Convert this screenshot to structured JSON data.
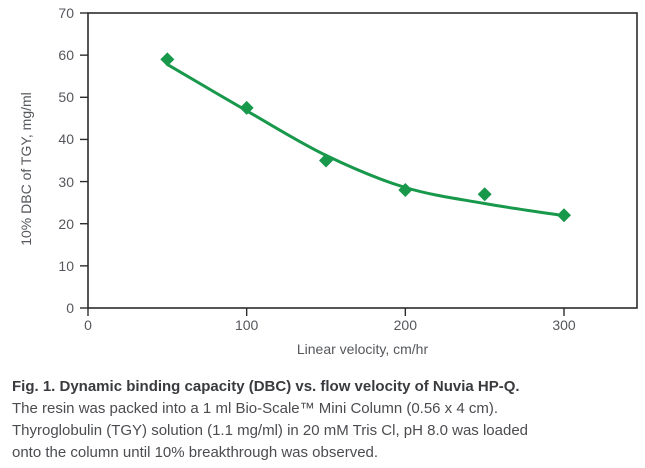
{
  "chart_data": {
    "type": "scatter",
    "title": "",
    "xlabel": "Linear velocity, cm/hr",
    "ylabel": "10% DBC of TGY, mg/ml",
    "xlim": [
      0,
      346
    ],
    "ylim": [
      0,
      70
    ],
    "x_ticks": [
      0,
      100,
      200,
      300
    ],
    "y_ticks": [
      0,
      10,
      20,
      30,
      40,
      50,
      60,
      70
    ],
    "grid": false,
    "legend": "none",
    "marker": "diamond",
    "series": [
      {
        "name": "10% DBC of TGY",
        "points": [
          [
            50,
            59
          ],
          [
            100,
            47.5
          ],
          [
            150,
            35
          ],
          [
            200,
            28
          ],
          [
            250,
            27
          ],
          [
            300,
            22
          ]
        ]
      }
    ],
    "trend_curve": [
      [
        50,
        57.8
      ],
      [
        100,
        46.8
      ],
      [
        150,
        36.2
      ],
      [
        200,
        28.6
      ],
      [
        250,
        24.8
      ],
      [
        300,
        21.9
      ]
    ],
    "colors": {
      "series": "#17984b",
      "axis": "#2b2c2e",
      "tick_text": "#55575c"
    }
  },
  "caption": {
    "title": "Fig. 1. Dynamic binding capacity (DBC) vs. flow velocity of Nuvia HP-Q.",
    "lines": [
      "The resin was packed into a 1 ml Bio-Scale™ Mini Column (0.56 x 4 cm).",
      "Thyroglobulin (TGY) solution (1.1 mg/ml) in 20 mM Tris Cl, pH 8.0 was loaded",
      "onto the column until 10% breakthrough was observed."
    ]
  }
}
